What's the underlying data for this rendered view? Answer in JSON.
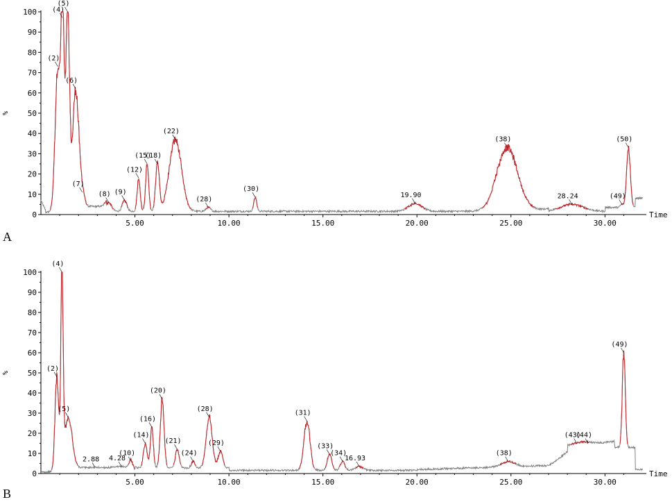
{
  "chart_data": [
    {
      "type": "line",
      "panel_label": "A",
      "ylabel": "%",
      "xlabel": "Time",
      "xlim": [
        0,
        32.2
      ],
      "ylim": [
        0,
        100
      ],
      "xticks": [
        "5.00",
        "10.00",
        "15.00",
        "20.00",
        "25.00",
        "30.00"
      ],
      "yticks": [
        "0",
        "10",
        "20",
        "30",
        "40",
        "50",
        "60",
        "70",
        "80",
        "90",
        "100"
      ],
      "colors": {
        "baseline": "#808080",
        "peaks": "#c0282d"
      },
      "peaks": [
        {
          "label": "(2)",
          "x": 0.9,
          "y": 73,
          "w": 0.14
        },
        {
          "label": "(4)",
          "x": 1.15,
          "y": 97,
          "w": 0.08
        },
        {
          "label": "(5)",
          "x": 1.42,
          "y": 100,
          "w": 0.1
        },
        {
          "label": "(6)",
          "x": 1.85,
          "y": 62,
          "w": 0.16
        },
        {
          "label": "(7)",
          "x": 2.2,
          "y": 11,
          "w": 0.12
        },
        {
          "label": "(8)",
          "x": 3.6,
          "y": 6,
          "w": 0.15
        },
        {
          "label": "(9)",
          "x": 4.45,
          "y": 7,
          "w": 0.12
        },
        {
          "label": "(12)",
          "x": 5.2,
          "y": 18,
          "w": 0.08
        },
        {
          "label": "(15)",
          "x": 5.65,
          "y": 25,
          "w": 0.08
        },
        {
          "label": "(18)",
          "x": 6.2,
          "y": 25,
          "w": 0.1
        },
        {
          "label": "(22)",
          "x": 7.15,
          "y": 37,
          "w": 0.32
        },
        {
          "label": "(28)",
          "x": 8.9,
          "y": 3.5,
          "w": 0.12
        },
        {
          "label": "(30)",
          "x": 11.4,
          "y": 8.5,
          "w": 0.08
        },
        {
          "label": "19.90",
          "x": 19.9,
          "y": 5.5,
          "w": 0.35
        },
        {
          "label": "(38)",
          "x": 24.8,
          "y": 33,
          "w": 0.55
        },
        {
          "label": "28.24",
          "x": 28.24,
          "y": 5,
          "w": 0.6
        },
        {
          "label": "(49)",
          "x": 30.9,
          "y": 5,
          "w": 0.08
        },
        {
          "label": "(50)",
          "x": 31.25,
          "y": 33,
          "w": 0.1
        }
      ]
    },
    {
      "type": "line",
      "panel_label": "B",
      "ylabel": "%",
      "xlabel": "Time",
      "xlim": [
        0,
        32.2
      ],
      "ylim": [
        0,
        100
      ],
      "xticks": [
        "5.00",
        "10.00",
        "15.00",
        "20.00",
        "25.00",
        "30.00"
      ],
      "yticks": [
        "0",
        "10",
        "20",
        "30",
        "40",
        "50",
        "60",
        "70",
        "80",
        "90",
        "100"
      ],
      "colors": {
        "baseline": "#808080",
        "peaks": "#c0282d"
      },
      "peaks": [
        {
          "label": "(2)",
          "x": 0.85,
          "y": 48,
          "w": 0.1
        },
        {
          "label": "(4)",
          "x": 1.12,
          "y": 100,
          "w": 0.06
        },
        {
          "label": "(5)",
          "x": 1.45,
          "y": 28,
          "w": 0.2
        },
        {
          "label": "2.88",
          "x": 2.88,
          "y": 3,
          "w": 0.2
        },
        {
          "label": "4.28",
          "x": 4.28,
          "y": 3.5,
          "w": 0.2
        },
        {
          "label": "(10)",
          "x": 4.8,
          "y": 6,
          "w": 0.1
        },
        {
          "label": "(14)",
          "x": 5.55,
          "y": 15,
          "w": 0.1
        },
        {
          "label": "(16)",
          "x": 5.9,
          "y": 23,
          "w": 0.08
        },
        {
          "label": "(20)",
          "x": 6.45,
          "y": 37,
          "w": 0.1
        },
        {
          "label": "(21)",
          "x": 7.25,
          "y": 12,
          "w": 0.1
        },
        {
          "label": "(24)",
          "x": 8.1,
          "y": 6,
          "w": 0.1
        },
        {
          "label": "(28)",
          "x": 8.95,
          "y": 28,
          "w": 0.16
        },
        {
          "label": "(29)",
          "x": 9.55,
          "y": 11,
          "w": 0.12
        },
        {
          "label": "(31)",
          "x": 14.15,
          "y": 26,
          "w": 0.16
        },
        {
          "label": "(33)",
          "x": 15.35,
          "y": 9.5,
          "w": 0.12
        },
        {
          "label": "(34)",
          "x": 16.05,
          "y": 6,
          "w": 0.12
        },
        {
          "label": "16.93",
          "x": 16.93,
          "y": 3.5,
          "w": 0.2
        },
        {
          "label": "(38)",
          "x": 24.85,
          "y": 6,
          "w": 0.35
        },
        {
          "label": "(43)",
          "x": 28.5,
          "y": 15,
          "w": 0.5
        },
        {
          "label": "(44)",
          "x": 29.1,
          "y": 15,
          "w": 0.4
        },
        {
          "label": "(49)",
          "x": 31.0,
          "y": 60,
          "w": 0.08
        }
      ]
    }
  ]
}
